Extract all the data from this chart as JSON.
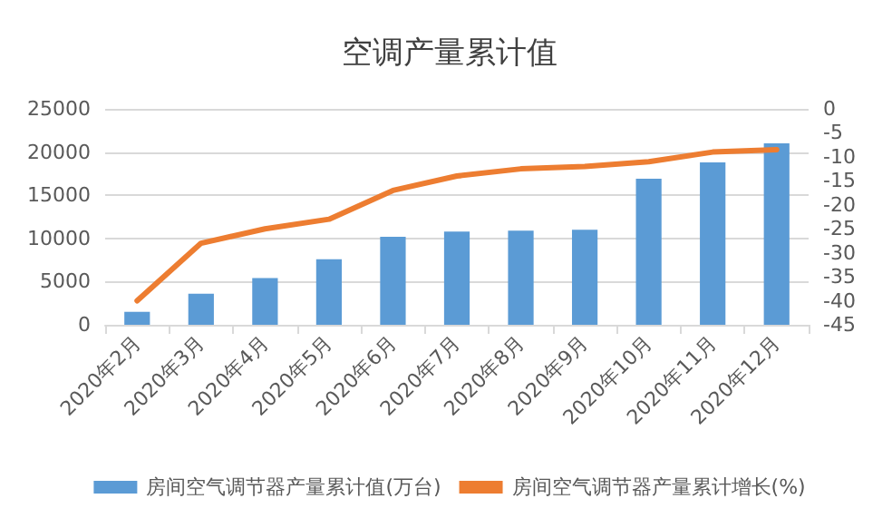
{
  "chart_data": {
    "type": "bar",
    "title": "空调产量累计值",
    "categories": [
      "2020年2月",
      "2020年3月",
      "2020年4月",
      "2020年5月",
      "2020年6月",
      "2020年7月",
      "2020年8月",
      "2020年9月",
      "2020年10月",
      "2020年11月",
      "2020年12月"
    ],
    "series": [
      {
        "name": "房间空气调节器产量累计值(万台)",
        "color": "#5b9bd5",
        "values": [
          1500,
          3600,
          5400,
          7600,
          10200,
          10800,
          10900,
          11000,
          16900,
          18800,
          21000
        ]
      },
      {
        "name": "房间空气调节器产量累计增长(%)",
        "type": "line",
        "axis": "y2",
        "color": "#ed7d31",
        "values": [
          -40,
          -28,
          -25,
          -23,
          -17,
          -14,
          -12.5,
          -12,
          -11,
          -9,
          -8.5
        ]
      }
    ],
    "ylim": [
      0,
      25000
    ],
    "yticks": [
      0,
      5000,
      10000,
      15000,
      20000,
      25000
    ],
    "y2lim": [
      -45,
      0
    ],
    "y2ticks": [
      -45,
      -40,
      -35,
      -30,
      -25,
      -20,
      -15,
      -10,
      -5,
      0
    ],
    "grid": "y",
    "legend": "bottom",
    "marker": "none",
    "line_style": "solid"
  }
}
